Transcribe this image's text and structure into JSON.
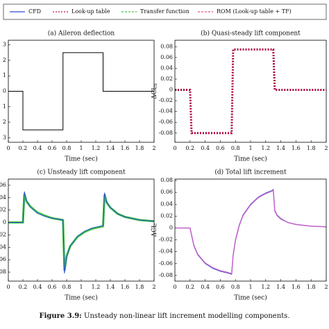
{
  "legend": [
    {
      "name": "CFD",
      "color": "#2a4fd6",
      "dash": "none"
    },
    {
      "name": "Look-up table",
      "color": "#c0103c",
      "dash": "2,2"
    },
    {
      "name": "Transfer function",
      "color": "#3cc43c",
      "dash": "3,2"
    },
    {
      "name": "ROM (Look-up table + TF)",
      "color": "#e0508a",
      "dash": "3,2"
    }
  ],
  "chart_data": [
    {
      "type": "line",
      "title": "(a) Aileron deflection",
      "xlabel": "Time (sec)",
      "xlim": [
        0,
        2
      ],
      "xticks": [
        0,
        0.2,
        0.4,
        0.6,
        0.8,
        1,
        1.2,
        1.4,
        1.6,
        1.8,
        2
      ],
      "ylim": [
        -3.3,
        3.3
      ],
      "yticks": [
        3,
        2,
        1,
        0,
        {
          "value": -1,
          "label": "1"
        },
        {
          "value": -2,
          "label": "2"
        },
        {
          "value": -3,
          "label": "3"
        }
      ],
      "x": [
        0,
        0.2,
        0.2,
        0.75,
        0.75,
        1.3,
        1.3,
        2
      ],
      "series": [
        {
          "color": "#000000",
          "dash": "none",
          "width": 1,
          "values": [
            0,
            0,
            -2.5,
            -2.5,
            2.5,
            2.5,
            0,
            0
          ]
        }
      ]
    },
    {
      "type": "line",
      "title": "(b) Quasi-steady lift component",
      "xlabel": "Time (sec)",
      "ylabel": "ΔCl",
      "ylabel_sub": "cs",
      "xlim": [
        0,
        2
      ],
      "xticks": [
        0,
        0.2,
        0.4,
        0.6,
        0.8,
        1,
        1.2,
        1.4,
        1.6,
        1.8,
        2
      ],
      "ylim": [
        -0.097,
        0.092
      ],
      "yticks": [
        0.08,
        0.06,
        0.04,
        0.02,
        0,
        -0.02,
        -0.04,
        -0.06,
        -0.08
      ],
      "x": [
        0,
        0.2,
        0.22,
        0.75,
        0.77,
        1.3,
        1.32,
        2
      ],
      "series": [
        {
          "color": "#a8003a",
          "dash": "2,2",
          "width": 3,
          "values": [
            0,
            0,
            -0.08,
            -0.08,
            0.075,
            0.075,
            0,
            0
          ]
        }
      ]
    },
    {
      "type": "line",
      "title": "(c) Unsteady lift component",
      "xlabel": "Time (sec)",
      "xlim": [
        0,
        2
      ],
      "xticks": [
        0,
        0.2,
        0.4,
        0.6,
        0.8,
        1,
        1.2,
        1.4,
        1.6,
        1.8,
        2
      ],
      "ylim": [
        -0.0945,
        0.07
      ],
      "yticks": [
        {
          "value": 0.06,
          "label": "06"
        },
        {
          "value": 0.04,
          "label": "04"
        },
        {
          "value": 0.02,
          "label": "02"
        },
        0,
        {
          "value": -0.02,
          "label": "02"
        },
        {
          "value": -0.04,
          "label": "04"
        },
        {
          "value": -0.06,
          "label": "06"
        },
        {
          "value": -0.08,
          "label": "08"
        }
      ],
      "x": [
        0,
        0.2,
        0.22,
        0.25,
        0.3,
        0.4,
        0.5,
        0.6,
        0.75,
        0.77,
        0.8,
        0.85,
        0.95,
        1.05,
        1.15,
        1.3,
        1.32,
        1.35,
        1.4,
        1.5,
        1.6,
        1.8,
        2
      ],
      "series": [
        {
          "color": "#3cc43c",
          "dash": "none",
          "width": 3,
          "values": [
            0,
            0,
            0.046,
            0.034,
            0.026,
            0.016,
            0.011,
            0.007,
            0.004,
            -0.078,
            -0.054,
            -0.038,
            -0.023,
            -0.015,
            -0.01,
            -0.006,
            0.045,
            0.032,
            0.024,
            0.014,
            0.009,
            0.004,
            0.002
          ]
        },
        {
          "color": "#2a4fd6",
          "dash": "none",
          "width": 1,
          "values": [
            0,
            0,
            0.05,
            0.035,
            0.025,
            0.015,
            0.01,
            0.007,
            0.004,
            -0.082,
            -0.055,
            -0.038,
            -0.022,
            -0.014,
            -0.009,
            -0.005,
            0.048,
            0.033,
            0.024,
            0.014,
            0.009,
            0.004,
            0.002
          ]
        }
      ]
    },
    {
      "type": "line",
      "title": "(d) Total lift increment",
      "xlabel": "Time (sec)",
      "ylabel": "ΔCl",
      "ylabel_sub": "c",
      "xlim": [
        0,
        2
      ],
      "xticks": [
        0,
        0.2,
        0.4,
        0.6,
        0.8,
        1,
        1.2,
        1.4,
        1.6,
        1.8,
        2
      ],
      "ylim": [
        -0.0895,
        0.0824
      ],
      "yticks": [
        0.08,
        0.06,
        0.04,
        0.02,
        0,
        -0.02,
        -0.04,
        -0.06,
        -0.08
      ],
      "x": [
        0,
        0.2,
        0.25,
        0.3,
        0.4,
        0.5,
        0.6,
        0.7,
        0.75,
        0.77,
        0.8,
        0.85,
        0.9,
        1,
        1.1,
        1.2,
        1.28,
        1.3,
        1.32,
        1.35,
        1.4,
        1.5,
        1.6,
        1.8,
        2
      ],
      "series": [
        {
          "color": "#2a4fd6",
          "dash": "none",
          "width": 1,
          "values": [
            0,
            0,
            -0.03,
            -0.045,
            -0.06,
            -0.068,
            -0.073,
            -0.076,
            -0.078,
            -0.045,
            -0.02,
            0.005,
            0.022,
            0.04,
            0.052,
            0.059,
            0.063,
            0.065,
            0.03,
            0.022,
            0.016,
            0.009,
            0.006,
            0.003,
            0.002
          ]
        },
        {
          "color": "#c060c8",
          "dash": "none",
          "width": 1.5,
          "values": [
            0,
            0,
            -0.029,
            -0.044,
            -0.059,
            -0.067,
            -0.072,
            -0.075,
            -0.077,
            -0.046,
            -0.021,
            0.004,
            0.021,
            0.039,
            0.051,
            0.058,
            0.062,
            0.064,
            0.029,
            0.021,
            0.015,
            0.009,
            0.006,
            0.003,
            0.002
          ]
        }
      ]
    }
  ],
  "caption": {
    "label": "Figure 3.9:",
    "text": "Unsteady non-linear lift increment modelling components."
  }
}
